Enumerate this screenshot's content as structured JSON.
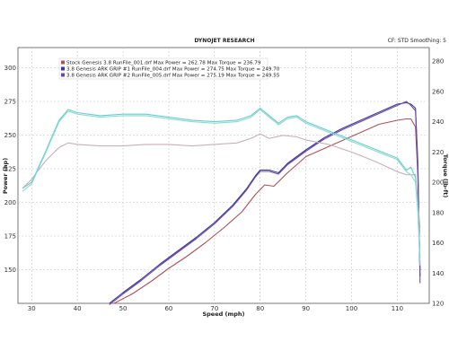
{
  "chart_data": {
    "type": "line",
    "title": "DYNOJET RESEARCH",
    "header_right": "CF: STD  Smoothing: 5",
    "xlabel": "Speed (mph)",
    "ylabel_left": "Power (hp)",
    "ylabel_right": "Torque (lb-ft)",
    "xlim": [
      27,
      117
    ],
    "ylim_left": [
      125,
      315
    ],
    "ylim_right": [
      120,
      289
    ],
    "x_ticks": [
      30,
      40,
      50,
      60,
      70,
      80,
      90,
      100,
      110
    ],
    "y_ticks_left": [
      150,
      175,
      200,
      225,
      250,
      275,
      300
    ],
    "y_ticks_right": [
      120,
      140,
      160,
      180,
      200,
      220,
      240,
      260,
      280
    ],
    "grid": true,
    "legend": [
      {
        "id": "sq1",
        "text": "Stock Genesis 3.8 RunFile_001.drf Max Power = 262.78      Max Torque = 236.79"
      },
      {
        "id": "sq2",
        "text": "3.8 Genesis ARK GRIP #1 RunFile_004.drf Max Power = 274.75      Max Torque = 249.70"
      },
      {
        "id": "sq3",
        "text": "3.8 Genesis ARK GRIP #2 RunFile_005.drf Max Power = 275.19      Max Torque = 249.55"
      }
    ],
    "series": [
      {
        "id": "stock_power",
        "axis": "left",
        "color": "#b05058",
        "x": [
          48,
          52,
          56,
          60,
          64,
          68,
          72,
          76,
          79,
          81,
          83,
          86,
          90,
          94,
          98,
          102,
          106,
          110,
          112,
          113,
          114,
          114.5,
          115
        ],
        "y": [
          125,
          132,
          141,
          151,
          160,
          170,
          181,
          193,
          206,
          213,
          212,
          222,
          234,
          240,
          246,
          252,
          258,
          261,
          262,
          262,
          256,
          220,
          150
        ]
      },
      {
        "id": "ark1_power",
        "axis": "left",
        "color": "#3a3aa0",
        "x": [
          47,
          50,
          54,
          58,
          62,
          66,
          70,
          74,
          77,
          79,
          80,
          82,
          84,
          86,
          90,
          94,
          98,
          102,
          106,
          110,
          112,
          113,
          114,
          114.5,
          115
        ],
        "y": [
          125,
          133,
          143,
          154,
          164,
          174,
          185,
          198,
          210,
          220,
          224,
          224,
          222,
          229,
          239,
          248,
          255,
          261,
          267,
          273,
          274,
          273,
          270,
          230,
          145
        ]
      },
      {
        "id": "ark2_power",
        "axis": "left",
        "color": "#6a4aa8",
        "x": [
          47,
          50,
          54,
          58,
          62,
          66,
          70,
          74,
          77,
          79,
          80,
          82,
          84,
          86,
          90,
          94,
          98,
          102,
          106,
          110,
          112,
          113,
          114,
          114.5,
          115
        ],
        "y": [
          124,
          132,
          142,
          153,
          163,
          173,
          184,
          197,
          209,
          219,
          223,
          223,
          221,
          228,
          238,
          247,
          254,
          260,
          266,
          272,
          275,
          272,
          268,
          225,
          140
        ]
      },
      {
        "id": "stock_torque",
        "axis": "right",
        "color": "#c8b0b8",
        "x": [
          28,
          30,
          33,
          36,
          38,
          40,
          45,
          50,
          55,
          60,
          65,
          70,
          75,
          78,
          80,
          82,
          85,
          88,
          90,
          95,
          100,
          105,
          110,
          112,
          114,
          115
        ],
        "y": [
          196,
          202,
          214,
          223,
          226,
          225,
          224,
          224,
          225,
          225,
          224,
          225,
          226,
          229,
          232,
          229,
          231,
          230,
          228,
          225,
          220,
          214,
          207,
          205,
          205,
          170
        ]
      },
      {
        "id": "ark1_torque",
        "axis": "right",
        "color": "#66cccc",
        "x": [
          28,
          30,
          33,
          36,
          38,
          40,
          45,
          50,
          55,
          60,
          65,
          70,
          75,
          78,
          80,
          82,
          84,
          86,
          88,
          90,
          95,
          100,
          105,
          110,
          112,
          113,
          114,
          114.5,
          115
        ],
        "y": [
          196,
          200,
          220,
          241,
          248,
          246,
          244,
          245,
          245,
          243,
          241,
          240,
          241,
          244,
          249,
          244,
          239,
          243,
          244,
          240,
          234,
          228,
          222,
          216,
          208,
          210,
          203,
          185,
          150
        ]
      },
      {
        "id": "ark2_torque",
        "axis": "right",
        "color": "#8adada",
        "x": [
          28,
          30,
          33,
          36,
          38,
          40,
          45,
          50,
          55,
          60,
          65,
          70,
          75,
          78,
          80,
          82,
          84,
          86,
          88,
          90,
          95,
          100,
          105,
          110,
          112,
          113,
          114,
          114.5,
          115
        ],
        "y": [
          194,
          199,
          219,
          240,
          247,
          245,
          243,
          244,
          244,
          242,
          240,
          239,
          240,
          243,
          248,
          243,
          238,
          242,
          243,
          239,
          233,
          227,
          221,
          215,
          207,
          205,
          200,
          180,
          145
        ]
      }
    ]
  }
}
